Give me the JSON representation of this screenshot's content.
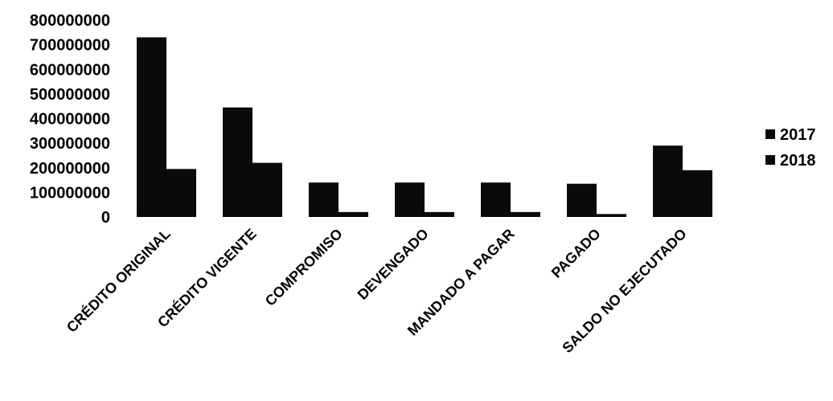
{
  "chart_data": {
    "type": "bar",
    "title": "",
    "xlabel": "",
    "ylabel": "",
    "ylim": [
      0,
      800000000
    ],
    "yticks": [
      "800000000",
      "700000000",
      "600000000",
      "500000000",
      "400000000",
      "300000000",
      "200000000",
      "100000000",
      "0"
    ],
    "categories": [
      "CRÉDITO ORIGINAL",
      "CRÉDITO VIGENTE",
      "COMPROMISO",
      "DEVENGADO",
      "MANDADO A PAGAR",
      "PAGADO",
      "SALDO NO EJECUTADO"
    ],
    "series": [
      {
        "name": "2017",
        "color": "#0a0a0a",
        "values": [
          730000000,
          445000000,
          140000000,
          140000000,
          140000000,
          135000000,
          290000000
        ]
      },
      {
        "name": "2018",
        "color": "#0a0a0a",
        "values": [
          195000000,
          220000000,
          20000000,
          20000000,
          20000000,
          12000000,
          190000000
        ]
      }
    ],
    "grid": false,
    "legend": "right"
  }
}
